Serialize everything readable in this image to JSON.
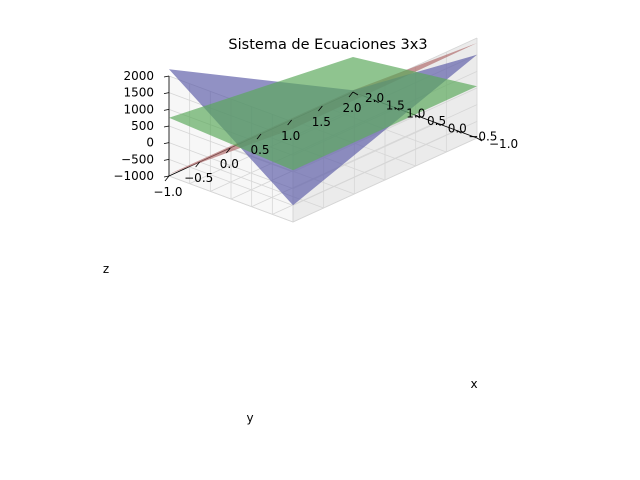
{
  "chart_data": {
    "type": "surface3d",
    "title": "Sistema de Ecuaciones 3x3",
    "xlabel": "x",
    "ylabel": "y",
    "zlabel": "z",
    "x_ticks": [
      "−1.0",
      "−0.5",
      "0.0",
      "0.5",
      "1.0",
      "1.5",
      "2.0"
    ],
    "y_ticks": [
      "−1.0",
      "−0.5",
      "0.0",
      "0.5",
      "1.0",
      "1.5",
      "2.0"
    ],
    "z_ticks": [
      "−1000",
      "−500",
      "0",
      "500",
      "1000",
      "1500",
      "2000"
    ],
    "xlim": [
      -1,
      2
    ],
    "ylim": [
      -1,
      2
    ],
    "zlim": [
      -1000,
      2000
    ],
    "grid": true,
    "series": [
      {
        "color": "#b06a6a",
        "corners": [
          {
            "x": -1,
            "y": -1,
            "z": 1800
          },
          {
            "x": 2,
            "y": -1,
            "z": 1850
          },
          {
            "x": 2,
            "y": 2,
            "z": -950
          },
          {
            "x": -1,
            "y": 2,
            "z": -950
          }
        ]
      },
      {
        "color": "#5d5da8",
        "corners": [
          {
            "x": -1,
            "y": -1,
            "z": -500
          },
          {
            "x": 2,
            "y": -1,
            "z": 1500
          },
          {
            "x": 2,
            "y": 2,
            "z": -950
          },
          {
            "x": -1,
            "y": 2,
            "z": 2200
          }
        ]
      },
      {
        "color": "#5aa85a",
        "corners": [
          {
            "x": -1,
            "y": -1,
            "z": 550
          },
          {
            "x": 2,
            "y": -1,
            "z": 550
          },
          {
            "x": 2,
            "y": 2,
            "z": 50
          },
          {
            "x": -1,
            "y": 2,
            "z": 750
          }
        ]
      }
    ]
  }
}
